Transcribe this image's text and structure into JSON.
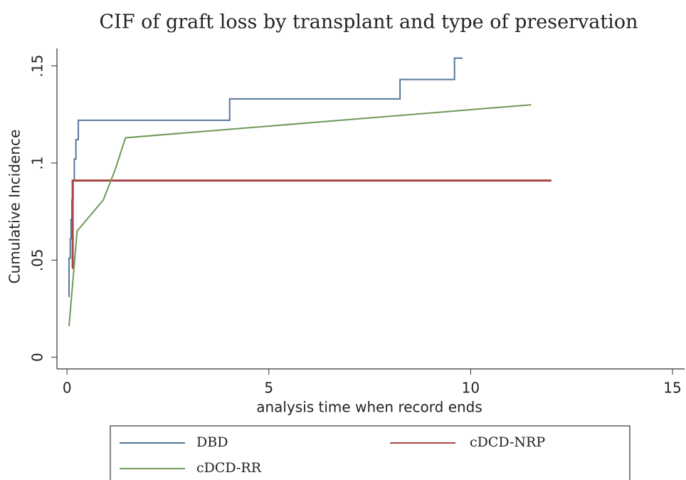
{
  "chart_data": {
    "type": "line",
    "title": "CIF of graft loss by transplant and type of preservation",
    "xlabel": "analysis time when record ends",
    "ylabel": "Cumulative Incidence",
    "xlim": [
      -0.25,
      15.3
    ],
    "xticks": [
      0,
      5,
      10,
      15
    ],
    "ylim": [
      -0.006,
      0.159
    ],
    "yticks": [
      0,
      {
        "value": 0.05,
        "label": ".05"
      },
      {
        "value": 0.1,
        "label": ".1"
      },
      {
        "value": 0.15,
        "label": ".15"
      }
    ],
    "grid": false,
    "legend": "bottom",
    "series": [
      {
        "name": "DBD",
        "color": "#56789a",
        "drawstyle": "steps-post",
        "x": [
          0.05,
          0.05,
          0.08,
          0.1,
          0.12,
          0.15,
          0.18,
          0.22,
          0.28,
          4.03,
          8.25,
          9.6,
          9.8
        ],
        "values": [
          0.031,
          0.051,
          0.061,
          0.071,
          0.081,
          0.091,
          0.102,
          0.112,
          0.122,
          0.133,
          0.143,
          0.154,
          0.154
        ]
      },
      {
        "name": "cDCD-NRP",
        "color": "#a84848",
        "drawstyle": "steps-post",
        "x": [
          0.12,
          0.14,
          12.0
        ],
        "values": [
          0.046,
          0.091,
          0.091
        ]
      },
      {
        "name": "cDCD-RR",
        "color": "#6e9a55",
        "drawstyle": "linear",
        "x": [
          0.05,
          0.25,
          0.9,
          1.2,
          1.45,
          11.5
        ],
        "values": [
          0.016,
          0.065,
          0.081,
          0.097,
          0.113,
          0.13
        ]
      }
    ]
  }
}
